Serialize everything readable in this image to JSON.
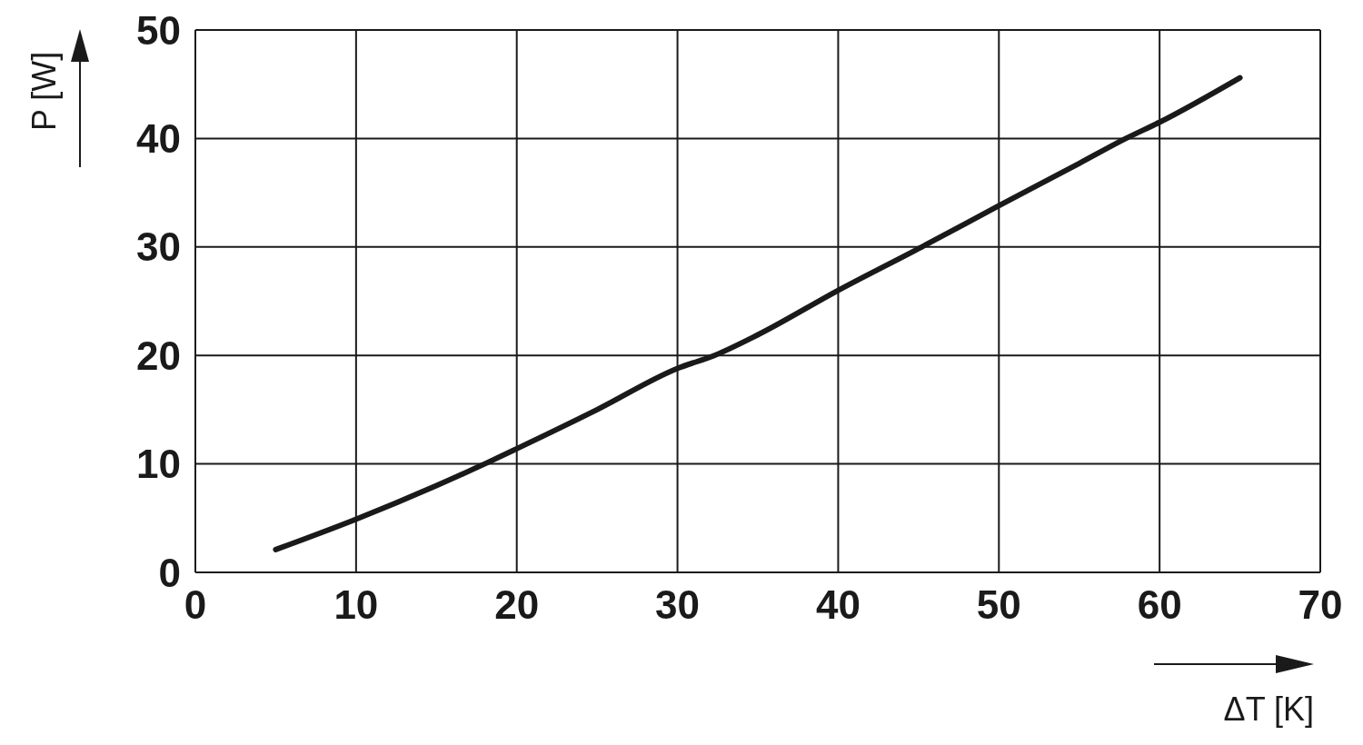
{
  "chart_data": {
    "type": "line",
    "xlabel": "ΔT [K]",
    "ylabel": "P [W]",
    "x": [
      5,
      10,
      15,
      18,
      20,
      25,
      30,
      32.3,
      35,
      40,
      45.2,
      50,
      55,
      57.9,
      60,
      65
    ],
    "series": [
      {
        "color": "#1a1a1a",
        "values": [
          2.1,
          4.9,
          8.0,
          10,
          11.4,
          15.0,
          18.8,
          20,
          21.9,
          26,
          30,
          33.8,
          37.7,
          40,
          41.5,
          45.6
        ]
      }
    ],
    "xlim": [
      0,
      70
    ],
    "xticks": [
      0,
      10,
      20,
      30,
      40,
      50,
      60,
      70
    ],
    "ylim": [
      0,
      50
    ],
    "yticks": [
      0,
      10,
      20,
      30,
      40,
      50
    ],
    "grid": true,
    "legend": false,
    "marker": "none",
    "line_style": "solid"
  }
}
